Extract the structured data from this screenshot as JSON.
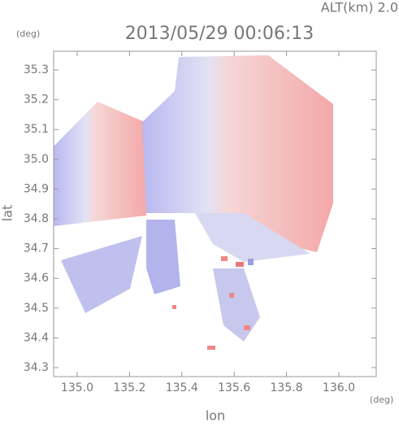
{
  "chart_data": {
    "type": "map",
    "title": "2013/05/29 00:06:13",
    "subtitle": "ALT(km) 2.0",
    "x_label": "lon",
    "y_label": "lat",
    "x_unit": "(deg)",
    "y_unit": "(deg)",
    "xlim": [
      134.91,
      136.143
    ],
    "ylim": [
      34.27,
      35.363
    ],
    "xticks": [
      {
        "value": 135.0,
        "label": "135.0"
      },
      {
        "value": 135.2,
        "label": "135.2"
      },
      {
        "value": 135.4,
        "label": "135.4"
      },
      {
        "value": 135.6,
        "label": "135.6"
      },
      {
        "value": 135.8,
        "label": "135.8"
      },
      {
        "value": 136.0,
        "label": "136.0"
      }
    ],
    "yticks": [
      {
        "value": 34.3,
        "label": "34.3"
      },
      {
        "value": 34.4,
        "label": "34.4"
      },
      {
        "value": 34.5,
        "label": "34.5"
      },
      {
        "value": 34.6,
        "label": "34.6"
      },
      {
        "value": 34.7,
        "label": "34.7"
      },
      {
        "value": 34.8,
        "label": "34.8"
      },
      {
        "value": 34.9,
        "label": "34.9"
      },
      {
        "value": 35.0,
        "label": "35.0"
      },
      {
        "value": 35.1,
        "label": "35.1"
      },
      {
        "value": 35.2,
        "label": "35.2"
      },
      {
        "value": 35.3,
        "label": "35.3"
      }
    ]
  }
}
